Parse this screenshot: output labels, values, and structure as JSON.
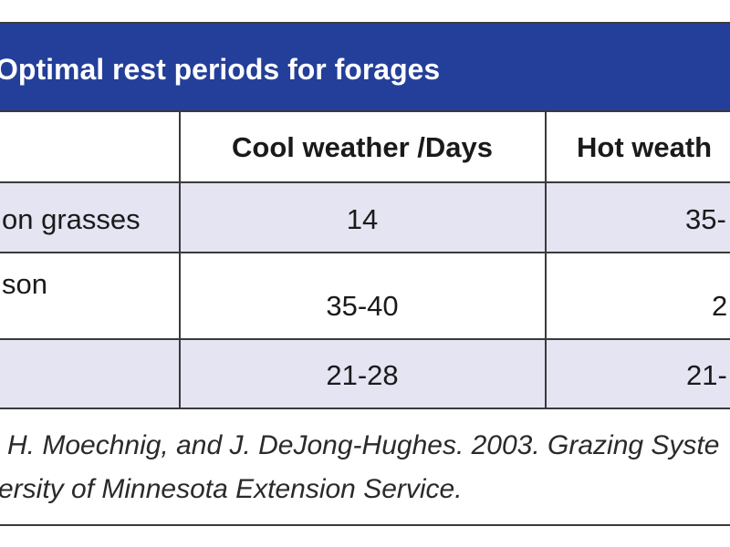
{
  "header": {
    "title": "Optimal rest periods for forages"
  },
  "table": {
    "columns": [
      "Cool weather /Days",
      "Hot weath"
    ],
    "rows": [
      {
        "label": "on grasses",
        "cool": "14",
        "hot": "35-"
      },
      {
        "label": "son",
        "cool": "35-40",
        "hot": "2"
      },
      {
        "cool": "21-28",
        "hot": "21-"
      }
    ]
  },
  "footer": {
    "lines": [
      "H. Moechnig, and J. DeJong-Hughes. 2003. Grazing Syste",
      "ersity of Minnesota Extension Service."
    ]
  }
}
